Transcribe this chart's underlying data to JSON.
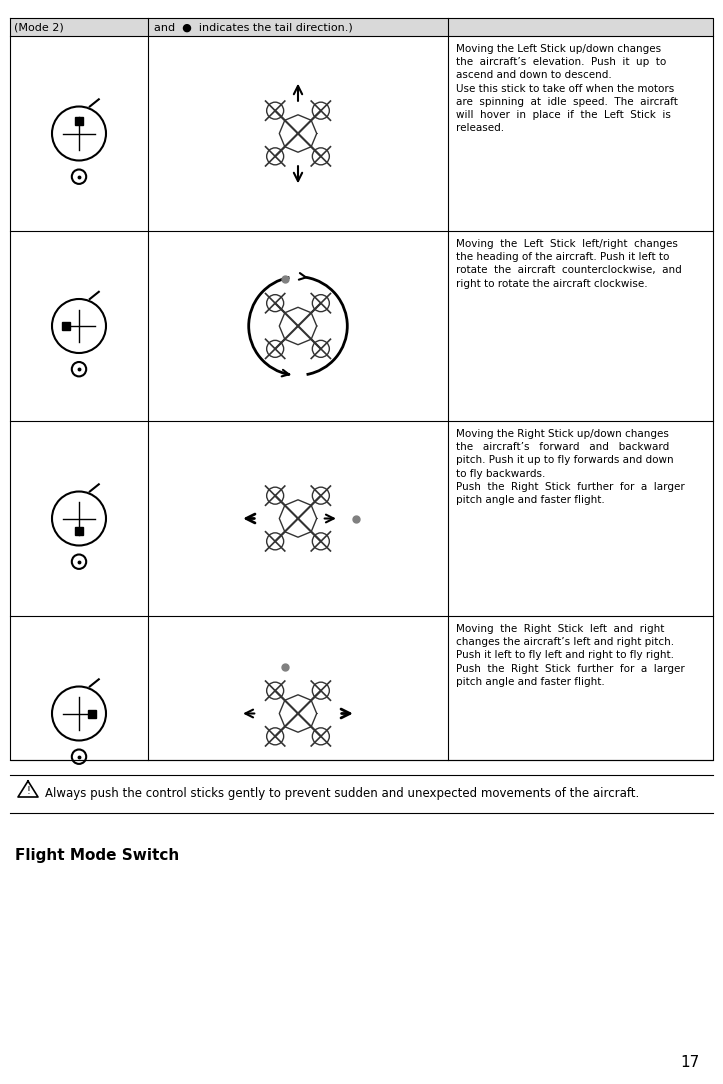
{
  "bg_color": "#ffffff",
  "header_bg": "#d9d9d9",
  "table_line_color": "#000000",
  "header_text_col1": "(Mode 2)",
  "header_text_col2": "and  ●  indicates the tail direction.)",
  "page_number": "17",
  "flight_mode_switch": "Flight Mode Switch",
  "warning_text": "Always push the control sticks gently to prevent sudden and unexpected movements of the aircraft.",
  "row_texts": [
    "Moving the Left Stick up/down changes\nthe  aircraft’s  elevation.  Push  it  up  to\nascend and down to descend.\nUse this stick to take off when the motors\nare  spinning  at  idle  speed.  The  aircraft\nwill  hover  in  place  if  the  Left  Stick  is\nreleased.",
    "Moving  the  Left  Stick  left/right  changes\nthe heading of the aircraft. Push it left to\nrotate  the  aircraft  counterclockwise,  and\nright to rotate the aircraft clockwise.",
    "Moving the Right Stick up/down changes\nthe   aircraft’s   forward   and   backward\npitch. Push it up to fly forwards and down\nto fly backwards.\nPush  the  Right  Stick  further  for  a  larger\npitch angle and faster flight.",
    "Moving  the  Right  Stick  left  and  right\nchanges the aircraft’s left and right pitch.\nPush it left to fly left and right to fly right.\nPush  the  Right  Stick  further  for  a  larger\npitch angle and faster flight."
  ],
  "fig_width": 7.23,
  "fig_height": 10.84,
  "dpi": 100
}
